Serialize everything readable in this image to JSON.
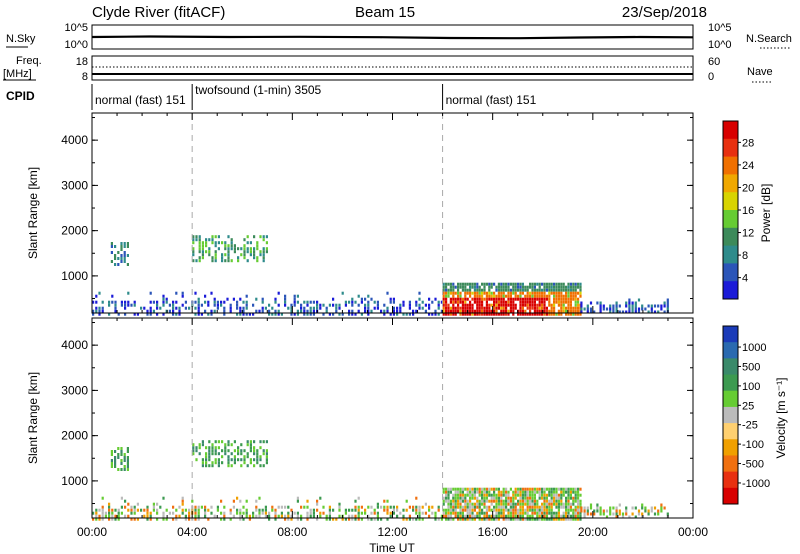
{
  "header": {
    "title": "Clyde River (fitACF)",
    "beam": "Beam 15",
    "date": "23/Sep/2018"
  },
  "nsky_panel": {
    "label": "N.Sky",
    "left_top": "10^5",
    "left_bottom": "10^0",
    "right_label": "N.Search",
    "right_top": "10^5",
    "right_bottom": "10^0"
  },
  "freq_panel": {
    "label1": "Freq.",
    "label2": "[MHz]",
    "left_top": "18",
    "left_bottom": "8",
    "right_label": "Nave",
    "right_top": "60",
    "right_bottom": "0"
  },
  "cpid_panel": {
    "label": "CPID",
    "segments": [
      {
        "text": "normal (fast) 151",
        "start_hour": 0
      },
      {
        "text": "twofsound (1-min) 3505",
        "start_hour": 4
      },
      {
        "text": "normal (fast) 151",
        "start_hour": 14
      }
    ]
  },
  "x_axis": {
    "label": "Time UT",
    "range_hours": [
      0,
      24
    ],
    "ticks": [
      "00:00",
      "04:00",
      "08:00",
      "12:00",
      "16:00",
      "20:00",
      "00:00"
    ]
  },
  "chart_data": [
    {
      "type": "heatmap",
      "ylabel": "Slant Range [km]",
      "ylim": [
        180,
        4600
      ],
      "yticks": [
        1000,
        2000,
        3000,
        4000
      ],
      "colorbar_label": "Power [dB]",
      "colorbar_ticks": [
        "4",
        "8",
        "12",
        "16",
        "20",
        "24",
        "28"
      ],
      "colorbar_colors": [
        "#1b1bd8",
        "#2b55b8",
        "#2e8b8b",
        "#3c8a5a",
        "#66cc33",
        "#d8d400",
        "#f0a800",
        "#f07000",
        "#e83010",
        "#d80000"
      ],
      "regions": [
        {
          "t": [
            0.75,
            1.5
          ],
          "r": [
            1250,
            1750
          ],
          "level": 2
        },
        {
          "t": [
            4.0,
            7.0
          ],
          "r": [
            1350,
            1900
          ],
          "level": 3
        },
        {
          "t": [
            0.0,
            14.0
          ],
          "r": [
            180,
            650
          ],
          "level": 1
        },
        {
          "t": [
            14.0,
            19.5
          ],
          "r": [
            180,
            850
          ],
          "level": 8
        },
        {
          "t": [
            19.5,
            23.0
          ],
          "r": [
            180,
            500
          ],
          "level": 1
        }
      ]
    },
    {
      "type": "heatmap",
      "ylabel": "Slant Range [km]",
      "ylim": [
        180,
        4600
      ],
      "yticks": [
        1000,
        2000,
        3000,
        4000
      ],
      "colorbar_label": "Velocity [m s⁻¹]",
      "colorbar_ticks": [
        "1000",
        "500",
        "100",
        "25",
        "-25",
        "-100",
        "-500",
        "-1000"
      ],
      "colorbar_colors": [
        "#1b3bb8",
        "#2a6ab0",
        "#3a8a6a",
        "#3c9a50",
        "#66cc33",
        "#bbbbbb",
        "#ffd070",
        "#f0a000",
        "#f07010",
        "#e83010",
        "#d80000"
      ],
      "regions": [
        {
          "t": [
            0.75,
            1.5
          ],
          "r": [
            1250,
            1750
          ],
          "level": 3
        },
        {
          "t": [
            4.0,
            7.0
          ],
          "r": [
            1350,
            1900
          ],
          "level": 3
        },
        {
          "t": [
            0.0,
            14.0
          ],
          "r": [
            180,
            650
          ],
          "level": 4
        },
        {
          "t": [
            14.0,
            19.5
          ],
          "r": [
            180,
            850
          ],
          "level": 4
        },
        {
          "t": [
            19.5,
            23.0
          ],
          "r": [
            180,
            500
          ],
          "level": 4
        }
      ]
    }
  ]
}
